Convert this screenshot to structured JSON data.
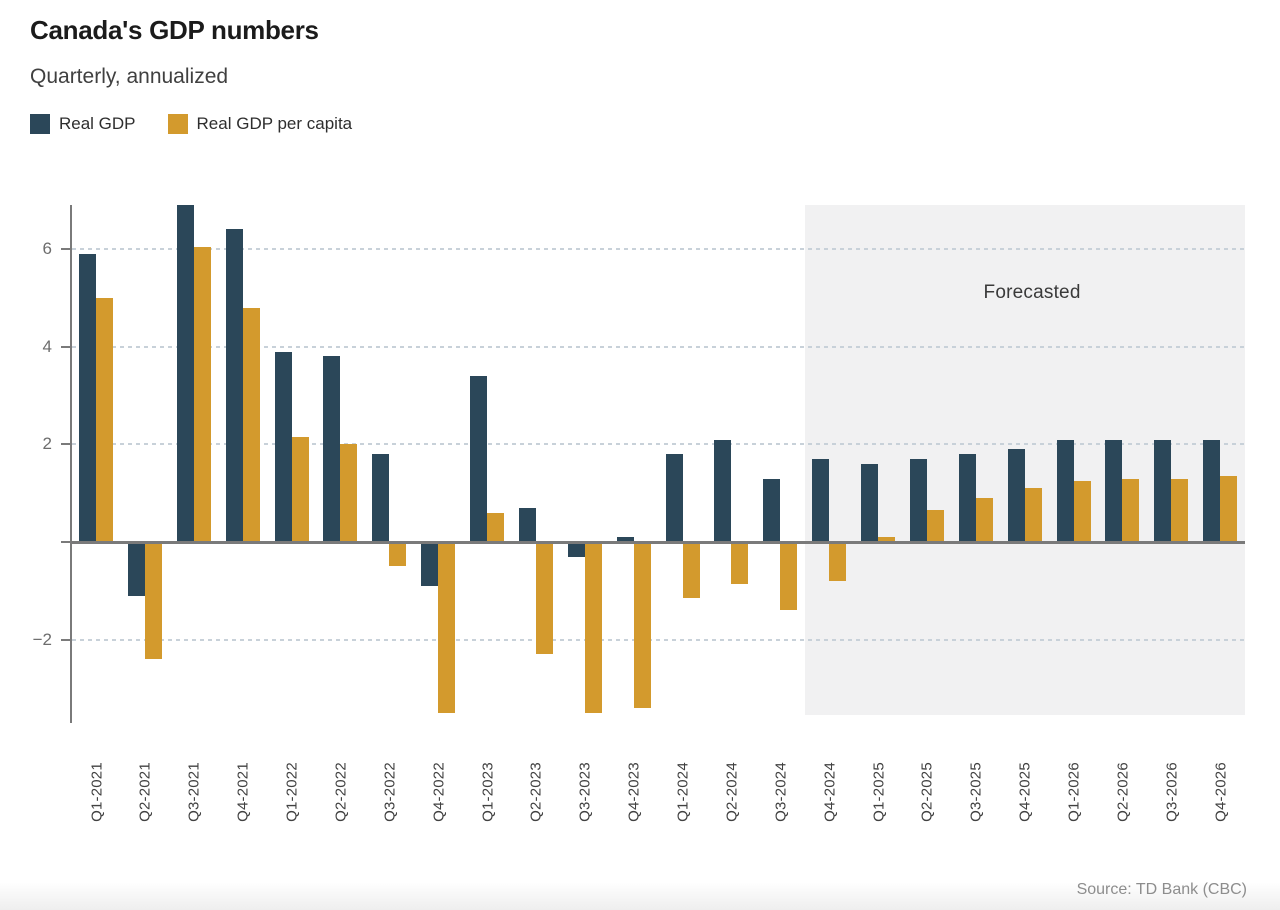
{
  "header": {
    "title": "Canada's GDP numbers",
    "subtitle": "Quarterly, annualized"
  },
  "legend": {
    "items": [
      {
        "label": "Real GDP",
        "color": "#2b4759"
      },
      {
        "label": "Real GDP per capita",
        "color": "#d39a2d"
      }
    ]
  },
  "footer": {
    "source": "Source: TD Bank (CBC)"
  },
  "chart_data": {
    "type": "bar",
    "title": "Canada's GDP numbers",
    "subtitle": "Quarterly, annualized",
    "categories": [
      "Q1-2021",
      "Q2-2021",
      "Q3-2021",
      "Q4-2021",
      "Q1-2022",
      "Q2-2022",
      "Q3-2022",
      "Q4-2022",
      "Q1-2023",
      "Q2-2023",
      "Q3-2023",
      "Q4-2023",
      "Q1-2024",
      "Q2-2024",
      "Q3-2024",
      "Q4-2024",
      "Q1-2025",
      "Q2-2025",
      "Q3-2025",
      "Q4-2025",
      "Q1-2026",
      "Q2-2026",
      "Q3-2026",
      "Q4-2026"
    ],
    "series": [
      {
        "name": "Real GDP",
        "color": "#2b4759",
        "values": [
          5.9,
          -1.1,
          6.9,
          6.4,
          3.9,
          3.8,
          1.8,
          -0.9,
          3.4,
          0.7,
          -0.3,
          0.1,
          1.8,
          2.1,
          1.3,
          1.7,
          1.6,
          1.7,
          1.8,
          1.9,
          2.1,
          2.1,
          2.1,
          2.1
        ]
      },
      {
        "name": "Real GDP per capita",
        "color": "#d39a2d",
        "values": [
          5.0,
          -2.4,
          6.05,
          4.8,
          2.15,
          2.0,
          -0.5,
          -3.5,
          0.6,
          -2.3,
          -3.5,
          -3.4,
          -1.15,
          -0.85,
          -1.4,
          -0.8,
          0.1,
          0.65,
          0.9,
          1.1,
          1.25,
          1.3,
          1.3,
          1.35
        ]
      }
    ],
    "y_axis": {
      "ticks": [
        6,
        4,
        2,
        0,
        -2
      ],
      "labeled_ticks": [
        6,
        4,
        2,
        -2
      ],
      "tick_labels": [
        "6",
        "4",
        "2",
        "−2"
      ],
      "ylim": [
        -3.54,
        6.9
      ],
      "gridline_style": "dashed"
    },
    "forecast": {
      "label": "Forecasted",
      "start_category": "Q4-2024",
      "band_color": "#f1f1f2"
    },
    "legend_position": "top-left",
    "grid": true
  },
  "colors": {
    "real_gdp": "#2b4759",
    "real_gdp_per_capita": "#d39a2d",
    "gridline": "#c8d1d9",
    "axis": "#7a7a7a",
    "forecast_band": "#f1f1f2"
  }
}
